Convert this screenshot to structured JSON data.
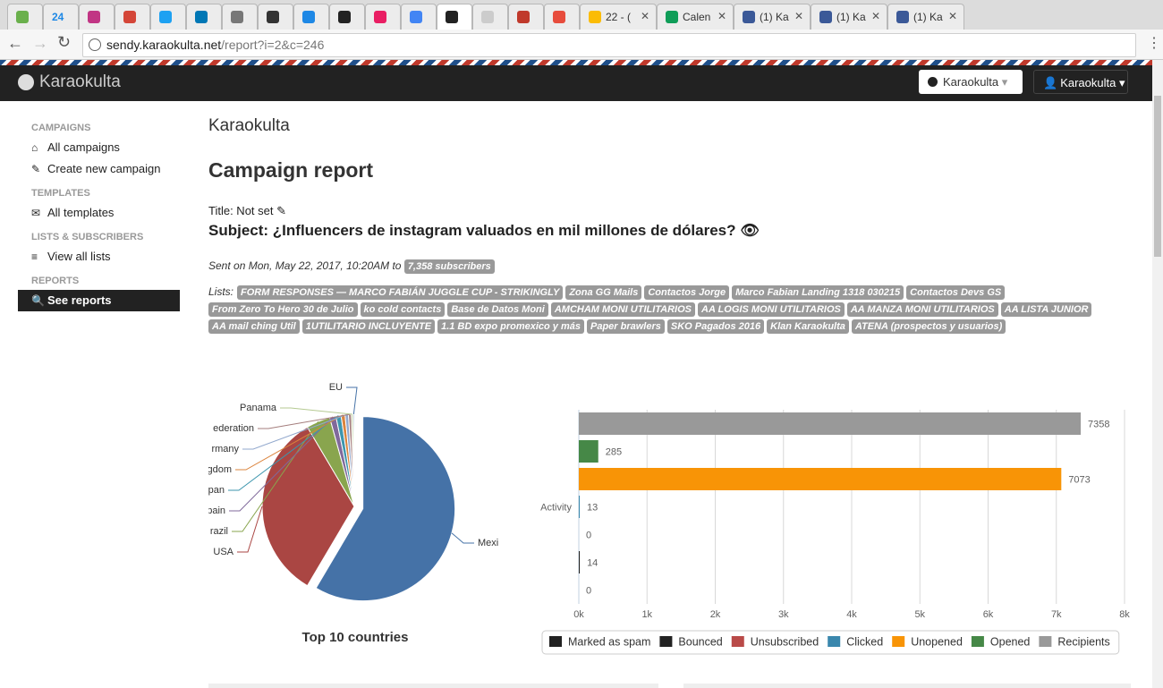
{
  "browser": {
    "tabs": [
      "24",
      "22 - (",
      "Calen",
      "(1) Ka",
      "(1) Ka",
      "(1) Ka"
    ],
    "url_host": "sendy.karaokulta.net",
    "url_path": "/report?i=2&c=246"
  },
  "navbar": {
    "brand": "Karaokulta",
    "brand_menu": "Karaokulta",
    "user_menu": "Karaokulta"
  },
  "sidebar": {
    "sections": [
      {
        "heading": "CAMPAIGNS",
        "items": [
          "All campaigns",
          "Create new campaign"
        ]
      },
      {
        "heading": "TEMPLATES",
        "items": [
          "All templates"
        ]
      },
      {
        "heading": "LISTS & SUBSCRIBERS",
        "items": [
          "View all lists"
        ]
      },
      {
        "heading": "REPORTS",
        "items": [
          "See reports"
        ]
      }
    ]
  },
  "content": {
    "app_name": "Karaokulta",
    "heading": "Campaign report",
    "title_label": "Title: Not set",
    "subject": "Subject: ¿Influencers de instagram valuados en mil millones de dólares?",
    "sent": "Sent on Mon, May 22, 2017, 10:20AM to",
    "subscribers": "7,358 subscribers",
    "lists_label": "Lists:",
    "lists": [
      "FORM RESPONSES — MARCO FABIÁN JUGGLE CUP - STRIKINGLY",
      "Zona GG Mails",
      "Contactos Jorge",
      "Marco Fabian Landing 1318 030215",
      "Contactos Devs GS",
      "From Zero To Hero 30 de Julio",
      "ko cold contacts",
      "Base de Datos Moni",
      "AMCHAM MONI UTILITARIOS",
      "AA LOGIS MONI UTILITARIOS",
      "AA MANZA MONI UTILITARIOS",
      "AA LISTA JUNIOR",
      "AA mail ching Util",
      "1UTILITARIO INCLUYENTE",
      "1.1 BD expo promexico y más",
      "Paper brawlers",
      "SKO Pagados 2016",
      "Klan Karaokulta",
      "ATENA (prospectos y usuarios)"
    ]
  },
  "chart_data": [
    {
      "type": "pie",
      "title": "Top 10 countries",
      "categories": [
        "Mexi",
        "USA",
        "razil",
        "pain",
        "pan",
        "gdom",
        "rmany",
        "ederation",
        "Panama",
        "EU"
      ],
      "values": [
        58.5,
        33,
        4.2,
        1.1,
        0.9,
        0.7,
        0.6,
        0.5,
        0.3,
        0.2
      ],
      "colors": [
        "#4572a7",
        "#aa4643",
        "#89a54e",
        "#80699b",
        "#3d96ae",
        "#db843d",
        "#92a8cd",
        "#a47d7c",
        "#b5ca92",
        "#4572a7"
      ]
    },
    {
      "type": "bar",
      "categories": [
        "Activity"
      ],
      "series": [
        {
          "name": "Marked as spam",
          "color": "#222222",
          "values": [
            0
          ]
        },
        {
          "name": "Bounced",
          "color": "#222222",
          "values": [
            14
          ]
        },
        {
          "name": "Unsubscribed",
          "color": "#b94a48",
          "values": [
            0
          ]
        },
        {
          "name": "Clicked",
          "color": "#3a87ad",
          "values": [
            13
          ]
        },
        {
          "name": "Unopened",
          "color": "#f89406",
          "values": [
            7073
          ]
        },
        {
          "name": "Opened",
          "color": "#468847",
          "values": [
            285
          ]
        },
        {
          "name": "Recipients",
          "color": "#999999",
          "values": [
            7358
          ]
        }
      ],
      "xlim": [
        0,
        8000
      ],
      "xticks": [
        {
          "value": 0,
          "label": "0k"
        },
        {
          "value": 1000,
          "label": "1k"
        },
        {
          "value": 2000,
          "label": "2k"
        },
        {
          "value": 3000,
          "label": "3k"
        },
        {
          "value": 4000,
          "label": "4k"
        },
        {
          "value": 5000,
          "label": "5k"
        },
        {
          "value": 6000,
          "label": "6k"
        },
        {
          "value": 7000,
          "label": "7k"
        },
        {
          "value": 8000,
          "label": "8k"
        }
      ],
      "grid": true,
      "legend": "bottom"
    }
  ]
}
